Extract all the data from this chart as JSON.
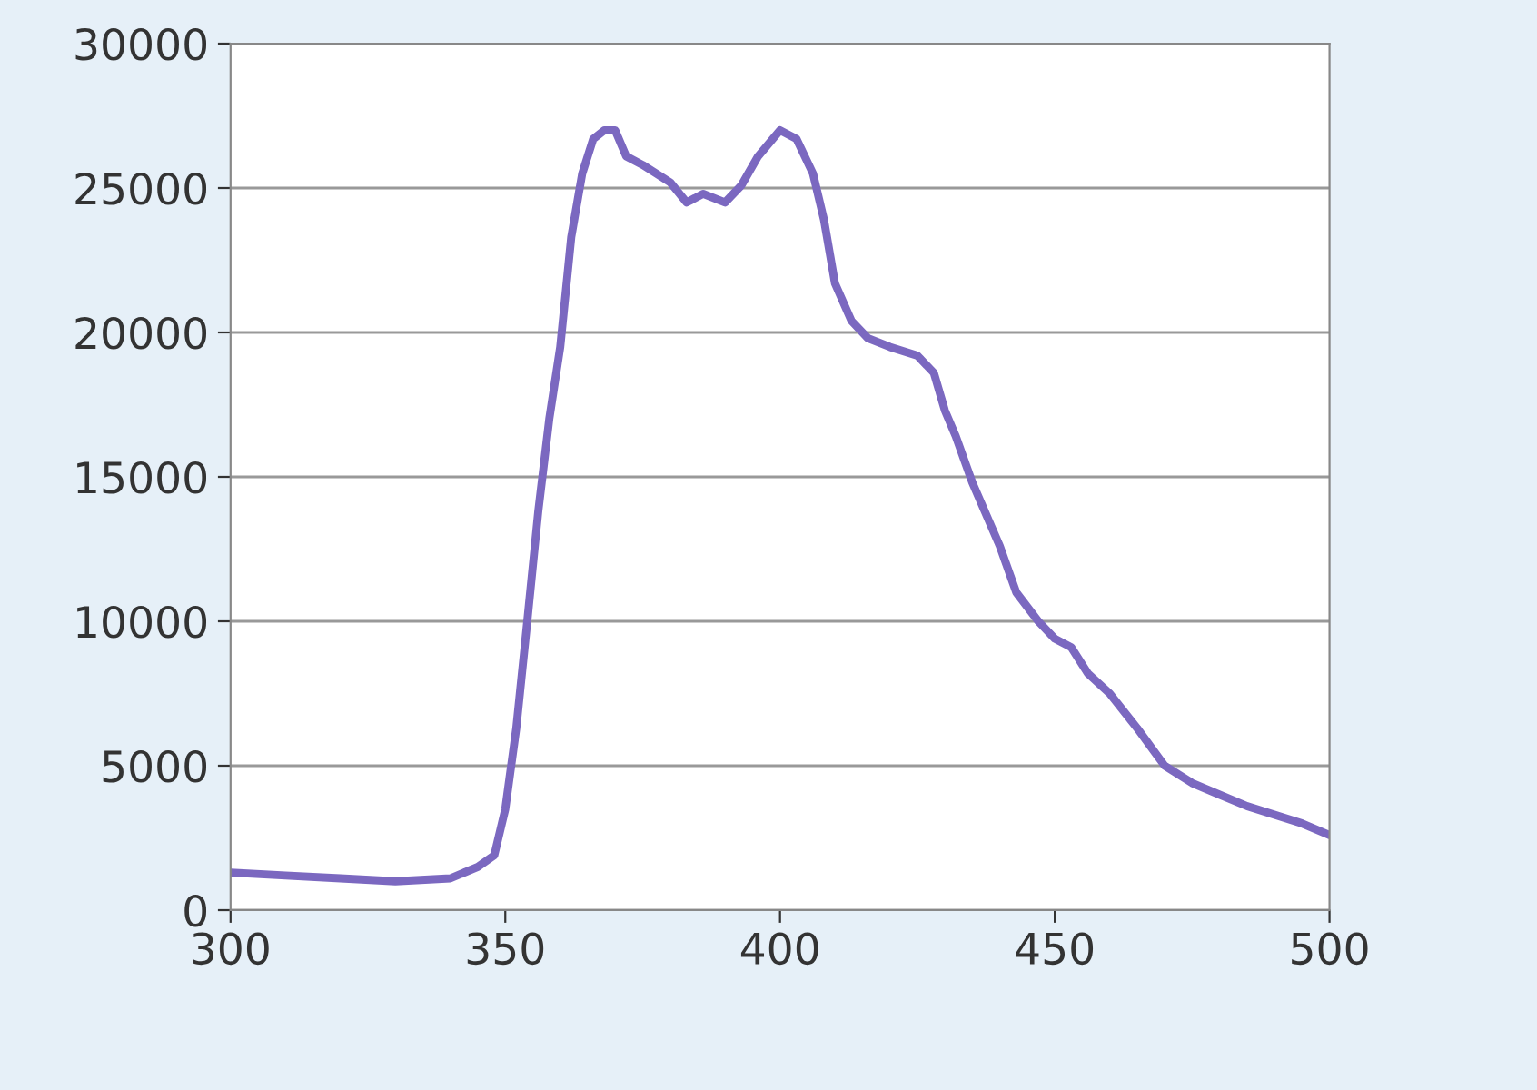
{
  "chart_data": {
    "type": "line",
    "x": [
      300,
      310,
      320,
      330,
      340,
      345,
      348,
      350,
      352,
      354,
      356,
      358,
      360,
      362,
      364,
      366,
      368,
      370,
      372,
      375,
      380,
      383,
      386,
      390,
      393,
      396,
      400,
      403,
      406,
      408,
      410,
      413,
      416,
      420,
      425,
      428,
      430,
      432,
      435,
      440,
      443,
      447,
      450,
      453,
      456,
      460,
      465,
      470,
      475,
      480,
      485,
      490,
      495,
      500
    ],
    "series": [
      {
        "color": "#7b68c0",
        "values": [
          1300,
          1200,
          1100,
          1000,
          1100,
          1500,
          1900,
          3500,
          6300,
          10000,
          13800,
          17000,
          19500,
          23300,
          25500,
          26700,
          27000,
          27000,
          26100,
          25800,
          25200,
          24500,
          24800,
          24500,
          25100,
          26100,
          27000,
          26700,
          25500,
          23900,
          21700,
          20400,
          19800,
          19500,
          19200,
          18600,
          17300,
          16400,
          14800,
          12600,
          11000,
          10000,
          9400,
          9100,
          8200,
          7500,
          6300,
          5000,
          4400,
          4000,
          3600,
          3300,
          3000,
          2600
        ]
      }
    ],
    "xlim": [
      300,
      500
    ],
    "xticks": [
      300,
      350,
      400,
      450,
      500
    ],
    "ylim": [
      0,
      30000
    ],
    "yticks": [
      0,
      5000,
      10000,
      15000,
      20000,
      25000,
      30000
    ],
    "grid": "y",
    "legend": false,
    "marker": "none",
    "line_style": "solid"
  }
}
